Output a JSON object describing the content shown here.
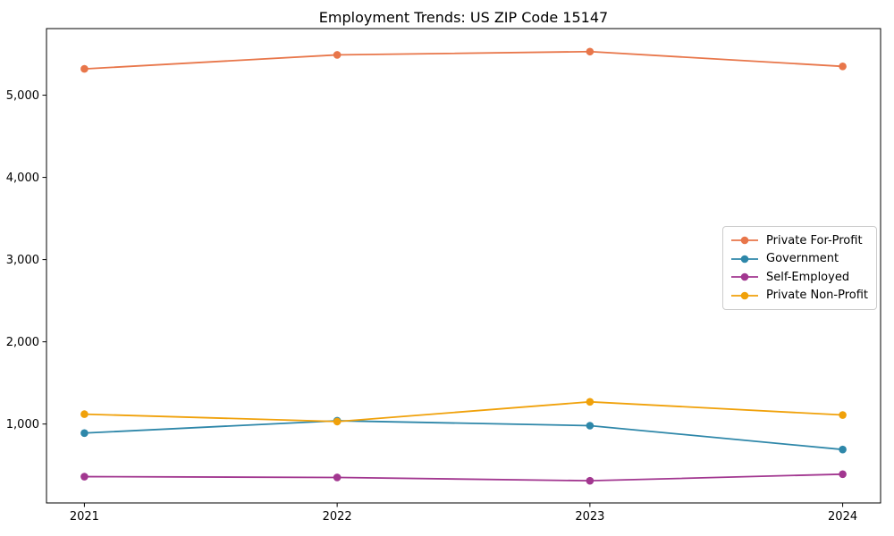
{
  "chart_data": {
    "type": "line",
    "title": "Employment Trends: US ZIP Code 15147",
    "xlabel": "",
    "ylabel": "",
    "x": [
      2021,
      2022,
      2023,
      2024
    ],
    "x_tick_labels": [
      "2021",
      "2022",
      "2023",
      "2024"
    ],
    "y_tick_values": [
      1000,
      2000,
      3000,
      4000,
      5000
    ],
    "y_tick_labels": [
      "1,000",
      "2,000",
      "3,000",
      "4,000",
      "5,000"
    ],
    "xlim": [
      2020.85,
      2024.15
    ],
    "ylim": [
      40,
      5810
    ],
    "grid": false,
    "legend_position": "center-right",
    "marker": "circle",
    "series": [
      {
        "name": "Private For-Profit",
        "color": "#e8764a",
        "values": [
          5320,
          5490,
          5530,
          5350
        ]
      },
      {
        "name": "Government",
        "color": "#2e87a9",
        "values": [
          890,
          1040,
          980,
          690
        ]
      },
      {
        "name": "Self-Employed",
        "color": "#a23790",
        "values": [
          360,
          350,
          310,
          390
        ]
      },
      {
        "name": "Private Non-Profit",
        "color": "#f0a10a",
        "values": [
          1120,
          1030,
          1270,
          1110
        ]
      }
    ]
  }
}
